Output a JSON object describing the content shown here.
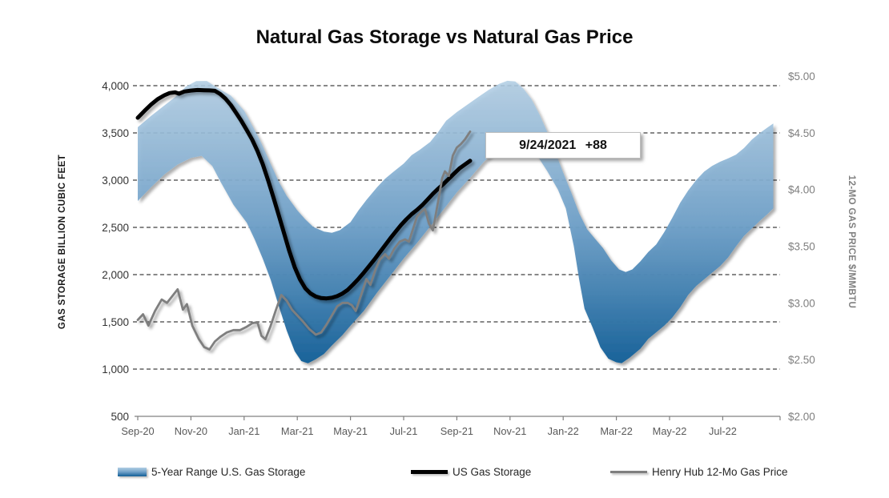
{
  "title": "Natural Gas Storage vs Natural Gas Price",
  "annotation": {
    "text": "9/24/2021 +88"
  },
  "axes": {
    "left": {
      "label": "GAS STORAGE BILLION CUBIC FEET",
      "tick_labels": [
        "4,000",
        "3,500",
        "3,000",
        "2,500",
        "2,000",
        "1,500",
        "1,000",
        "500"
      ],
      "tick_values": [
        4000,
        3500,
        3000,
        2500,
        2000,
        1500,
        1000,
        500
      ]
    },
    "right": {
      "label": "12-MO GAS PRICE $/MMBTU",
      "tick_labels": [
        "$5.00",
        "$4.50",
        "$4.00",
        "$3.50",
        "$3.00",
        "$2.50",
        "$2.00"
      ],
      "tick_values": [
        5.0,
        4.5,
        4.0,
        3.5,
        3.0,
        2.5,
        2.0
      ]
    },
    "x": {
      "tick_labels": [
        "Sep-20",
        "Nov-20",
        "Jan-21",
        "Mar-21",
        "May-21",
        "Jul-21",
        "Sep-21",
        "Nov-21",
        "Jan-22",
        "Mar-22",
        "May-22",
        "Jul-22"
      ],
      "tick_months": [
        0,
        2,
        4,
        6,
        8,
        10,
        12,
        14,
        16,
        18,
        20,
        22
      ]
    }
  },
  "legend": {
    "items": [
      {
        "label": "5-Year Range U.S. Gas Storage",
        "marker": "band"
      },
      {
        "label": "US Gas Storage",
        "marker": "thick-line"
      },
      {
        "label": "Henry Hub 12-Mo Gas Price",
        "marker": "thin-line"
      }
    ]
  },
  "colors": {
    "band_stop_top": "#B3CFE5",
    "band_stop_mid": "#6FA0C8",
    "band_stop_bottom": "#125E96",
    "storage_line": "#000000",
    "price_line": "#7F7F7F",
    "gridline": "#404040",
    "axis_line": "#808080",
    "left_tick_text": "#333333",
    "right_tick_text": "#7F7F7F",
    "x_tick_text": "#595959"
  },
  "chart_data": {
    "type": "combo",
    "title": "Natural Gas Storage vs Natural Gas Price",
    "x_unit": "months since Sep-2020 (x tick labels Sep-20 through Jul-22, every 2 months)",
    "ylim_left_storage_bcf": [
      500,
      4000
    ],
    "ylim_right_price_usd": [
      2.0,
      5.0
    ],
    "grid": "horizontal dashed at left-axis 1,000 to 4,000 steps of 500",
    "legend_position": "bottom",
    "series": [
      {
        "name": "5-Year Range U.S. Gas Storage",
        "type": "area-range",
        "axis": "left",
        "top": [
          [
            0,
            3560
          ],
          [
            0.5,
            3680
          ],
          [
            1,
            3790
          ],
          [
            1.5,
            3900
          ],
          [
            1.8,
            3990
          ],
          [
            2.2,
            4048
          ],
          [
            2.6,
            4050
          ],
          [
            2.9,
            3995
          ],
          [
            3.1,
            3960
          ],
          [
            3.5,
            3895
          ],
          [
            4,
            3735
          ],
          [
            4.3,
            3580
          ],
          [
            4.6,
            3420
          ],
          [
            5,
            3170
          ],
          [
            5.3,
            2985
          ],
          [
            5.6,
            2835
          ],
          [
            6,
            2680
          ],
          [
            6.3,
            2585
          ],
          [
            6.6,
            2505
          ],
          [
            7,
            2455
          ],
          [
            7.3,
            2442
          ],
          [
            7.6,
            2470
          ],
          [
            8,
            2555
          ],
          [
            8.3,
            2680
          ],
          [
            8.6,
            2790
          ],
          [
            9,
            2925
          ],
          [
            9.3,
            3015
          ],
          [
            9.6,
            3085
          ],
          [
            10,
            3175
          ],
          [
            10.3,
            3265
          ],
          [
            10.6,
            3320
          ],
          [
            11,
            3405
          ],
          [
            11.3,
            3510
          ],
          [
            11.6,
            3630
          ],
          [
            12,
            3720
          ],
          [
            12.4,
            3800
          ],
          [
            12.8,
            3880
          ],
          [
            13.2,
            3955
          ],
          [
            13.6,
            4020
          ],
          [
            13.9,
            4052
          ],
          [
            14.2,
            4045
          ],
          [
            14.5,
            3970
          ],
          [
            14.8,
            3860
          ],
          [
            15.1,
            3700
          ],
          [
            15.4,
            3510
          ],
          [
            15.7,
            3300
          ],
          [
            16,
            3080
          ],
          [
            16.3,
            2870
          ],
          [
            16.6,
            2650
          ],
          [
            16.9,
            2480
          ],
          [
            17.2,
            2380
          ],
          [
            17.5,
            2280
          ],
          [
            17.8,
            2150
          ],
          [
            18.1,
            2055
          ],
          [
            18.35,
            2028
          ],
          [
            18.6,
            2055
          ],
          [
            18.9,
            2140
          ],
          [
            19.2,
            2240
          ],
          [
            19.5,
            2320
          ],
          [
            19.8,
            2450
          ],
          [
            20.1,
            2600
          ],
          [
            20.4,
            2760
          ],
          [
            20.7,
            2890
          ],
          [
            21,
            3000
          ],
          [
            21.3,
            3090
          ],
          [
            21.6,
            3150
          ],
          [
            21.9,
            3195
          ],
          [
            22.2,
            3230
          ],
          [
            22.5,
            3270
          ],
          [
            22.8,
            3340
          ],
          [
            23.1,
            3430
          ],
          [
            23.4,
            3500
          ],
          [
            23.7,
            3560
          ],
          [
            23.9,
            3600
          ]
        ],
        "bottom": [
          [
            0,
            2780
          ],
          [
            0.5,
            2925
          ],
          [
            1,
            3060
          ],
          [
            1.5,
            3165
          ],
          [
            2,
            3235
          ],
          [
            2.4,
            3258
          ],
          [
            2.8,
            3150
          ],
          [
            3.1,
            2990
          ],
          [
            3.6,
            2740
          ],
          [
            4.1,
            2550
          ],
          [
            4.4,
            2370
          ],
          [
            4.7,
            2170
          ],
          [
            5,
            1945
          ],
          [
            5.3,
            1670
          ],
          [
            5.6,
            1410
          ],
          [
            5.9,
            1190
          ],
          [
            6.15,
            1085
          ],
          [
            6.4,
            1062
          ],
          [
            6.7,
            1105
          ],
          [
            7,
            1160
          ],
          [
            7.3,
            1250
          ],
          [
            7.7,
            1360
          ],
          [
            8,
            1460
          ],
          [
            8.5,
            1615
          ],
          [
            9,
            1810
          ],
          [
            9.5,
            1990
          ],
          [
            10,
            2170
          ],
          [
            10.5,
            2335
          ],
          [
            11,
            2510
          ],
          [
            11.5,
            2690
          ],
          [
            12,
            2870
          ],
          [
            12.5,
            3025
          ],
          [
            13,
            3190
          ],
          [
            13.5,
            3330
          ],
          [
            14,
            3450
          ],
          [
            14.3,
            3490
          ],
          [
            14.6,
            3415
          ],
          [
            15,
            3270
          ],
          [
            15.4,
            3095
          ],
          [
            15.8,
            2900
          ],
          [
            16.1,
            2700
          ],
          [
            16.4,
            2300
          ],
          [
            16.6,
            1950
          ],
          [
            16.8,
            1640
          ],
          [
            17.1,
            1445
          ],
          [
            17.4,
            1230
          ],
          [
            17.7,
            1110
          ],
          [
            18,
            1072
          ],
          [
            18.2,
            1063
          ],
          [
            18.5,
            1120
          ],
          [
            18.9,
            1215
          ],
          [
            19.2,
            1320
          ],
          [
            19.5,
            1390
          ],
          [
            19.8,
            1460
          ],
          [
            20.1,
            1545
          ],
          [
            20.4,
            1655
          ],
          [
            20.7,
            1785
          ],
          [
            21,
            1880
          ],
          [
            21.3,
            1950
          ],
          [
            21.6,
            2020
          ],
          [
            21.9,
            2090
          ],
          [
            22.2,
            2180
          ],
          [
            22.5,
            2300
          ],
          [
            22.8,
            2410
          ],
          [
            23.1,
            2490
          ],
          [
            23.4,
            2570
          ],
          [
            23.7,
            2645
          ],
          [
            23.9,
            2700
          ]
        ]
      },
      {
        "name": "US Gas Storage",
        "type": "line",
        "axis": "left",
        "points": [
          [
            0,
            3660
          ],
          [
            0.25,
            3732
          ],
          [
            0.5,
            3800
          ],
          [
            0.75,
            3858
          ],
          [
            1,
            3898
          ],
          [
            1.2,
            3922
          ],
          [
            1.4,
            3930
          ],
          [
            1.55,
            3915
          ],
          [
            1.75,
            3938
          ],
          [
            2,
            3948
          ],
          [
            2.25,
            3954
          ],
          [
            2.5,
            3952
          ],
          [
            2.7,
            3950
          ],
          [
            2.9,
            3946
          ],
          [
            3.1,
            3912
          ],
          [
            3.3,
            3862
          ],
          [
            3.5,
            3795
          ],
          [
            3.7,
            3712
          ],
          [
            3.9,
            3625
          ],
          [
            4.1,
            3530
          ],
          [
            4.3,
            3430
          ],
          [
            4.5,
            3310
          ],
          [
            4.7,
            3170
          ],
          [
            4.9,
            3000
          ],
          [
            5.1,
            2820
          ],
          [
            5.3,
            2630
          ],
          [
            5.5,
            2440
          ],
          [
            5.7,
            2250
          ],
          [
            5.9,
            2080
          ],
          [
            6.1,
            1950
          ],
          [
            6.3,
            1855
          ],
          [
            6.5,
            1800
          ],
          [
            6.7,
            1768
          ],
          [
            6.9,
            1752
          ],
          [
            7.1,
            1748
          ],
          [
            7.3,
            1755
          ],
          [
            7.5,
            1772
          ],
          [
            7.7,
            1800
          ],
          [
            7.9,
            1840
          ],
          [
            8.1,
            1895
          ],
          [
            8.3,
            1955
          ],
          [
            8.5,
            2020
          ],
          [
            8.7,
            2090
          ],
          [
            8.9,
            2160
          ],
          [
            9.1,
            2235
          ],
          [
            9.3,
            2310
          ],
          [
            9.5,
            2385
          ],
          [
            9.7,
            2455
          ],
          [
            9.9,
            2525
          ],
          [
            10.1,
            2585
          ],
          [
            10.3,
            2640
          ],
          [
            10.5,
            2685
          ],
          [
            10.7,
            2735
          ],
          [
            10.9,
            2795
          ],
          [
            11.1,
            2855
          ],
          [
            11.3,
            2910
          ],
          [
            11.5,
            2960
          ],
          [
            11.7,
            3015
          ],
          [
            11.9,
            3070
          ],
          [
            12.1,
            3125
          ],
          [
            12.3,
            3165
          ],
          [
            12.5,
            3205
          ]
        ]
      },
      {
        "name": "Henry Hub 12-Mo Gas Price",
        "type": "line",
        "axis": "right",
        "points": [
          [
            0,
            2.85
          ],
          [
            0.2,
            2.9
          ],
          [
            0.4,
            2.8
          ],
          [
            0.65,
            2.93
          ],
          [
            0.9,
            3.03
          ],
          [
            1.1,
            3.0
          ],
          [
            1.3,
            3.06
          ],
          [
            1.5,
            3.12
          ],
          [
            1.7,
            2.94
          ],
          [
            1.85,
            2.99
          ],
          [
            2.05,
            2.8
          ],
          [
            2.3,
            2.68
          ],
          [
            2.5,
            2.61
          ],
          [
            2.7,
            2.59
          ],
          [
            2.9,
            2.66
          ],
          [
            3.1,
            2.7
          ],
          [
            3.35,
            2.74
          ],
          [
            3.6,
            2.76
          ],
          [
            3.85,
            2.76
          ],
          [
            4.1,
            2.79
          ],
          [
            4.3,
            2.82
          ],
          [
            4.5,
            2.83
          ],
          [
            4.65,
            2.71
          ],
          [
            4.8,
            2.68
          ],
          [
            5,
            2.8
          ],
          [
            5.2,
            2.94
          ],
          [
            5.4,
            3.07
          ],
          [
            5.6,
            3.02
          ],
          [
            5.8,
            2.94
          ],
          [
            6,
            2.89
          ],
          [
            6.2,
            2.84
          ],
          [
            6.45,
            2.77
          ],
          [
            6.7,
            2.72
          ],
          [
            6.9,
            2.74
          ],
          [
            7.1,
            2.81
          ],
          [
            7.3,
            2.89
          ],
          [
            7.5,
            2.97
          ],
          [
            7.7,
            3.0
          ],
          [
            7.9,
            3.0
          ],
          [
            8.05,
            2.98
          ],
          [
            8.2,
            2.93
          ],
          [
            8.4,
            3.07
          ],
          [
            8.6,
            3.21
          ],
          [
            8.75,
            3.16
          ],
          [
            8.95,
            3.3
          ],
          [
            9.1,
            3.38
          ],
          [
            9.3,
            3.43
          ],
          [
            9.45,
            3.39
          ],
          [
            9.65,
            3.48
          ],
          [
            9.85,
            3.54
          ],
          [
            10.05,
            3.56
          ],
          [
            10.2,
            3.54
          ],
          [
            10.35,
            3.65
          ],
          [
            10.5,
            3.76
          ],
          [
            10.65,
            3.8
          ],
          [
            10.8,
            3.83
          ],
          [
            10.95,
            3.7
          ],
          [
            11.1,
            3.64
          ],
          [
            11.3,
            3.9
          ],
          [
            11.45,
            4.1
          ],
          [
            11.55,
            4.16
          ],
          [
            11.7,
            4.12
          ],
          [
            11.85,
            4.3
          ],
          [
            12,
            4.37
          ],
          [
            12.15,
            4.4
          ],
          [
            12.3,
            4.44
          ],
          [
            12.5,
            4.51
          ]
        ]
      }
    ],
    "annotation": {
      "text": "9/24/2021 +88",
      "attached_to": "last point of US Gas Storage weekly data"
    }
  }
}
